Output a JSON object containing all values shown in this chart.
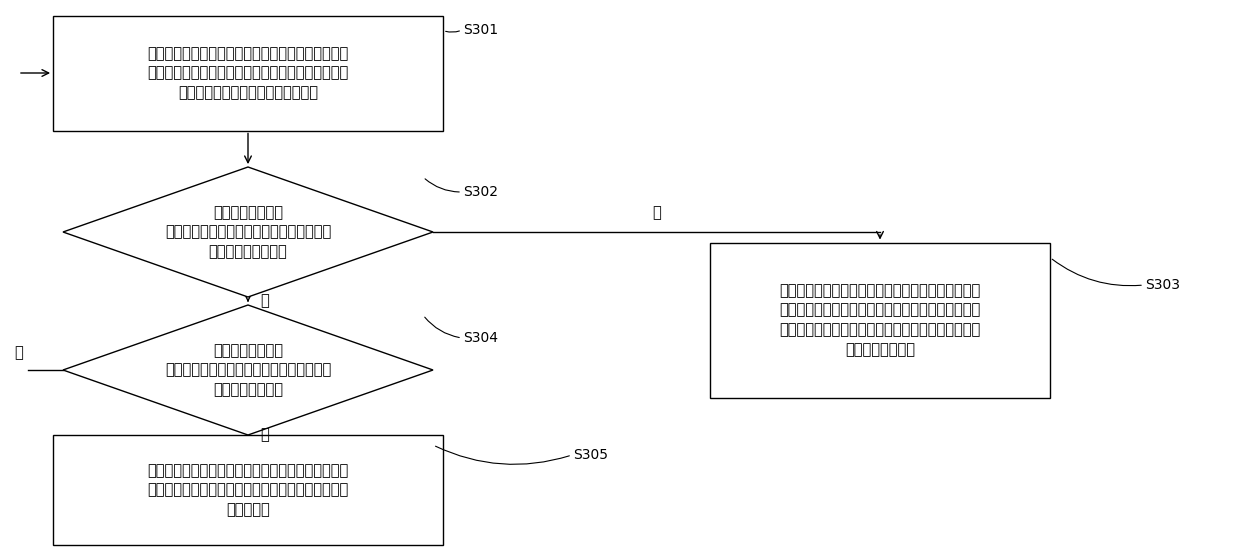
{
  "background_color": "#ffffff",
  "S301_text": "监测消息生产者发布到消息队列中间件中的总消息数\n、消息生产者发布消息的速率、以及每个消息消费者\n对消息队列中间件中消息的消费速率",
  "S302_text": "判断消息生产者发\n布到消息队列中间件中的总消息数是否大于\n预设最大消息数阈值",
  "S303_text": "根据消息生产者发布消息的速率和每个消息消费者对\n消息队列中间件中消息的消费速率，启动相应数量的\n消息消费者，使启动的消息消费者对消息队列中间件\n中的消息进行消费",
  "S304_text": "判断消息生产者发\n布到消息队列中间件中的总消息数是否小于\n预设最小消息阈值",
  "S305_text": "根据消息生产者发布消息的速率和每个消息消费者对\n消息队列中间件中消息的消费速率，关闭相应数量的\n消息消费者",
  "yes_label": "是",
  "no_label": "否",
  "font_size": 10.5,
  "label_font_size": 10,
  "arrow_label_font_size": 10.5
}
